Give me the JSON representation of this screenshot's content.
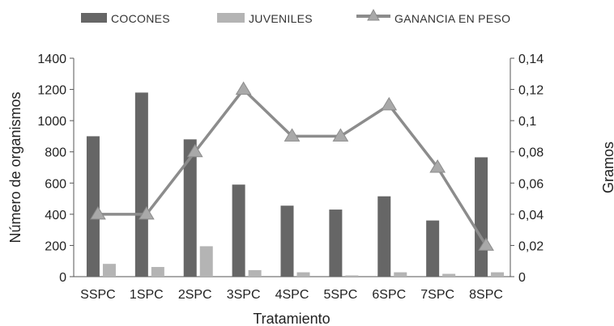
{
  "chart_data": {
    "type": "bar+line",
    "categories": [
      "SSPC",
      "1SPC",
      "2SPC",
      "3SPC",
      "4SPC",
      "5SPC",
      "6SPC",
      "7SPC",
      "8SPC"
    ],
    "series": [
      {
        "name": "COCONES",
        "type": "bar",
        "axis": "left",
        "color": "#666666",
        "values": [
          900,
          1180,
          880,
          590,
          455,
          430,
          515,
          360,
          765
        ]
      },
      {
        "name": "JUVENILES",
        "type": "bar",
        "axis": "left",
        "color": "#b4b4b4",
        "values": [
          82,
          62,
          195,
          42,
          28,
          8,
          28,
          18,
          28
        ]
      },
      {
        "name": "GANANCIA EN PESO",
        "type": "line",
        "axis": "right",
        "color": "#8c8c8c",
        "values": [
          0.04,
          0.04,
          0.08,
          0.12,
          0.09,
          0.09,
          0.11,
          0.07,
          0.02
        ]
      }
    ],
    "xlabel": "Tratamiento",
    "ylabel": "Número de organismos",
    "y2label": "Gramos",
    "ylim": [
      0,
      1400
    ],
    "y2lim": [
      0,
      0.14
    ],
    "yticks": [
      "0",
      "200",
      "400",
      "600",
      "800",
      "1000",
      "1200",
      "1400"
    ],
    "y2ticks": [
      "0",
      "0,02",
      "0,04",
      "0,06",
      "0,08",
      "0,1",
      "0,12",
      "0,14"
    ],
    "legend_position": "top",
    "grid": false
  }
}
